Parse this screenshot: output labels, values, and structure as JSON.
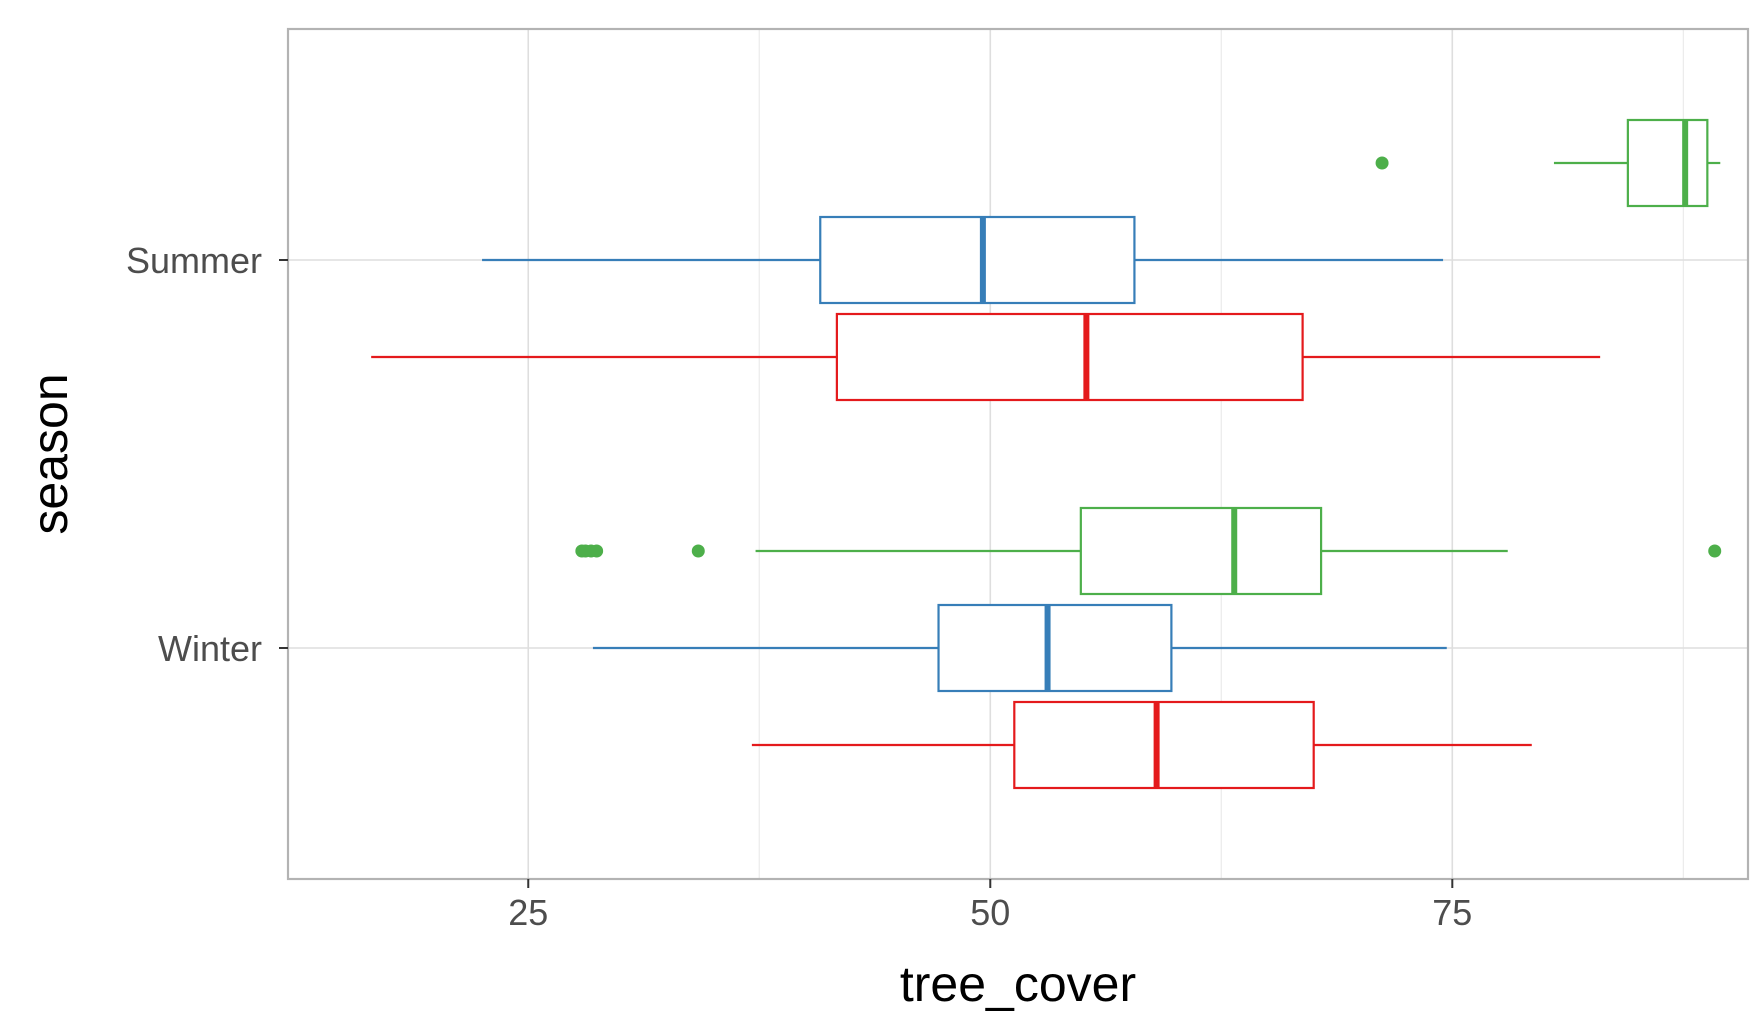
{
  "chart_data": {
    "type": "boxplot",
    "orientation": "horizontal",
    "xlabel": "tree_cover",
    "ylabel": "season",
    "xlim": [
      12,
      91
    ],
    "x_ticks": [
      25,
      50,
      75
    ],
    "x_minor_ticks": [
      37.5,
      62.5,
      87.5
    ],
    "categories": [
      "Summer",
      "Winter"
    ],
    "grid": true,
    "legend": "none",
    "groups": [
      {
        "category": "Summer",
        "boxes": [
          {
            "color": "#4daf4a",
            "whisker_low": 80.5,
            "q1": 84.5,
            "median": 87.6,
            "q3": 88.8,
            "whisker_high": 89.5,
            "outliers": [
              71.2
            ]
          },
          {
            "color": "#377eb8",
            "whisker_low": 22.5,
            "q1": 40.8,
            "median": 49.6,
            "q3": 57.8,
            "whisker_high": 74.5,
            "outliers": []
          },
          {
            "color": "#e41a1c",
            "whisker_low": 16.5,
            "q1": 41.7,
            "median": 55.2,
            "q3": 66.9,
            "whisker_high": 83.0,
            "outliers": []
          }
        ]
      },
      {
        "category": "Winter",
        "boxes": [
          {
            "color": "#4daf4a",
            "whisker_low": 37.3,
            "q1": 54.9,
            "median": 63.2,
            "q3": 67.9,
            "whisker_high": 78.0,
            "outliers": [
              27.9,
              28.1,
              28.4,
              28.7,
              34.2,
              89.2
            ]
          },
          {
            "color": "#377eb8",
            "whisker_low": 28.5,
            "q1": 47.2,
            "median": 53.1,
            "q3": 59.8,
            "whisker_high": 74.7,
            "outliers": []
          },
          {
            "color": "#e41a1c",
            "whisker_low": 37.1,
            "q1": 51.3,
            "median": 59.0,
            "q3": 67.5,
            "whisker_high": 79.3,
            "outliers": []
          }
        ]
      }
    ]
  }
}
